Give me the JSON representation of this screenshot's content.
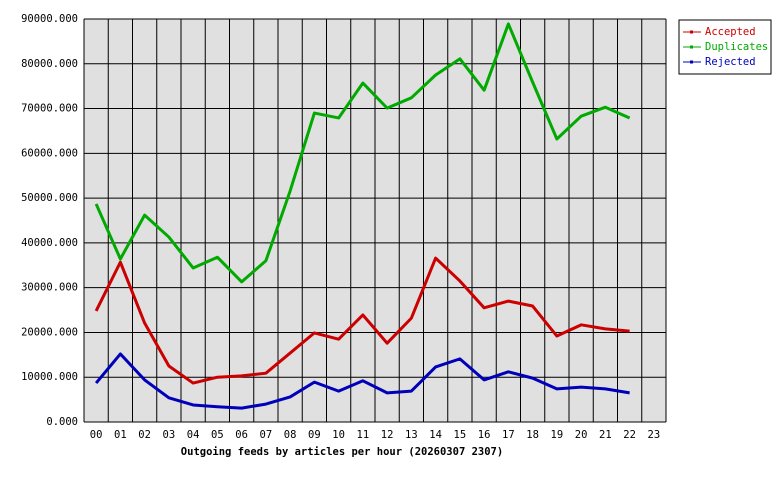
{
  "chart_data": {
    "type": "line",
    "title": "Outgoing feeds by articles per hour (20260307 2307)",
    "categories": [
      "00",
      "01",
      "02",
      "03",
      "04",
      "05",
      "06",
      "07",
      "08",
      "09",
      "10",
      "11",
      "12",
      "13",
      "14",
      "15",
      "16",
      "17",
      "18",
      "19",
      "20",
      "21",
      "22",
      "23"
    ],
    "series": [
      {
        "name": "Accepted",
        "color": "#cc0000",
        "values": [
          24800,
          35700,
          22100,
          12500,
          8700,
          10000,
          10300,
          10900,
          15400,
          19900,
          18500,
          23900,
          17600,
          23200,
          36600,
          31500,
          25500,
          27000,
          25900,
          19200,
          21700,
          20800,
          20300,
          null
        ]
      },
      {
        "name": "Duplicates",
        "color": "#00aa00",
        "values": [
          48700,
          36400,
          46200,
          41300,
          34400,
          36800,
          31300,
          36000,
          51600,
          69000,
          67900,
          75700,
          70100,
          72400,
          77500,
          81100,
          74100,
          88900,
          75900,
          63200,
          68300,
          70300,
          67900,
          null
        ]
      },
      {
        "name": "Rejected",
        "color": "#0000bb",
        "values": [
          8700,
          15200,
          9400,
          5400,
          3800,
          3400,
          3100,
          4000,
          5600,
          8900,
          6900,
          9200,
          6500,
          6900,
          12300,
          14100,
          9400,
          11200,
          9800,
          7400,
          7800,
          7400,
          6500,
          null
        ]
      }
    ],
    "ylim": [
      0,
      90000
    ],
    "yticks": [
      {
        "value": 0,
        "label": "0.000"
      },
      {
        "value": 10000,
        "label": "10000.000"
      },
      {
        "value": 20000,
        "label": "20000.000"
      },
      {
        "value": 30000,
        "label": "30000.000"
      },
      {
        "value": 40000,
        "label": "40000.000"
      },
      {
        "value": 50000,
        "label": "50000.000"
      },
      {
        "value": 60000,
        "label": "60000.000"
      },
      {
        "value": 70000,
        "label": "70000.000"
      },
      {
        "value": 80000,
        "label": "80000.000"
      },
      {
        "value": 90000,
        "label": "90000.000"
      }
    ],
    "grid": true,
    "legend": "outside-top-right"
  }
}
